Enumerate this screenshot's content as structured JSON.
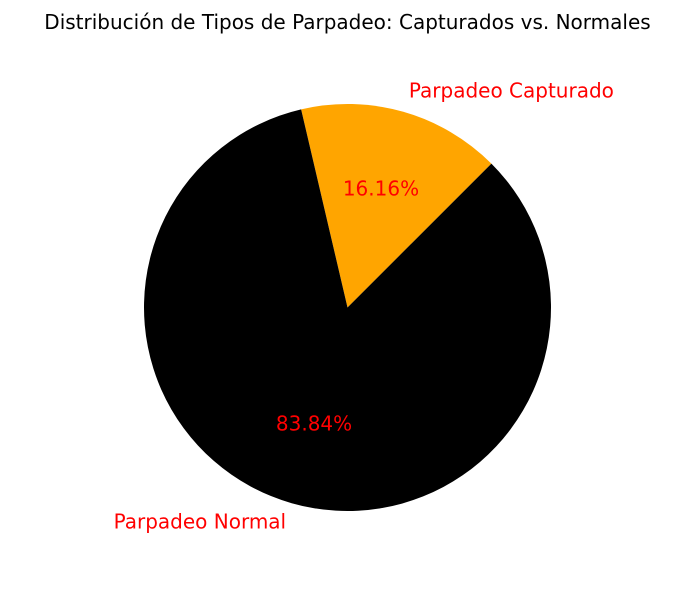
{
  "chart_data": {
    "type": "pie",
    "title": "Distribución de Tipos de Parpadeo: Capturados vs. Normales",
    "categories": [
      "Parpadeo Capturado",
      "Parpadeo Normal"
    ],
    "values": [
      16.16,
      83.84
    ],
    "percent_labels": [
      "16.16%",
      "83.84%"
    ],
    "colors": [
      "#FFA500",
      "#000000"
    ],
    "label_color": "#FF0000",
    "start_angle_deg": 45,
    "direction": "counterclockwise"
  }
}
